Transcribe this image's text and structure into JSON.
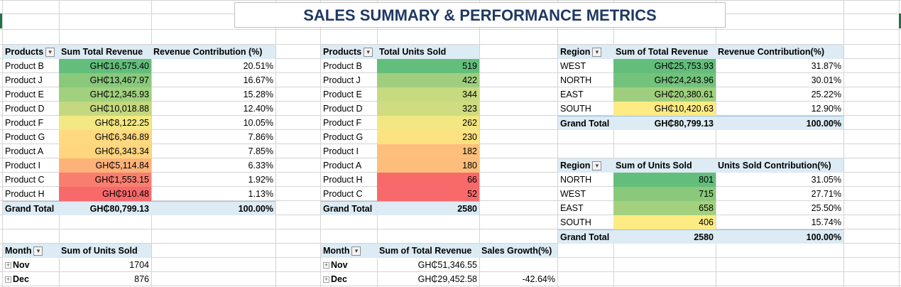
{
  "title": "SALES SUMMARY & PERFORMANCE METRICS",
  "colors": {
    "header_fill": "#dcebf4",
    "title_text": "#1f3864",
    "heat_green": "#63be7b",
    "heat_yellow": "#ffeb84",
    "heat_red": "#f8696b"
  },
  "products_revenue": {
    "headers": [
      "Products",
      "Sum  Total Revenue",
      "Revenue Contribution (%)"
    ],
    "rows": [
      [
        "Product B",
        "GH₵16,575.40",
        "20.51%"
      ],
      [
        "Product J",
        "GH₵13,467.97",
        "16.67%"
      ],
      [
        "Product E",
        "GH₵12,345.93",
        "15.28%"
      ],
      [
        "Product D",
        "GH₵10,018.88",
        "12.40%"
      ],
      [
        "Product F",
        "GH₵8,122.25",
        "10.05%"
      ],
      [
        "Product G",
        "GH₵6,346.89",
        "7.86%"
      ],
      [
        "Product A",
        "GH₵6,343.34",
        "7.85%"
      ],
      [
        "Product I",
        "GH₵5,114.84",
        "6.33%"
      ],
      [
        "Product C",
        "GH₵1,553.15",
        "1.92%"
      ],
      [
        "Product H",
        "GH₵910.48",
        "1.13%"
      ]
    ],
    "total": [
      "Grand Total",
      "GH₵80,799.13",
      "100.00%"
    ],
    "heat_colors": [
      "#63be7b",
      "#8ac97c",
      "#a1d07e",
      "#c4d97f",
      "#f3e883",
      "#ffd97f",
      "#ffd67e",
      "#fdb27a",
      "#f87f6f",
      "#f8696b"
    ]
  },
  "products_units": {
    "headers": [
      "Products",
      "Total Units Sold"
    ],
    "rows": [
      [
        "Product B",
        "519"
      ],
      [
        "Product J",
        "422"
      ],
      [
        "Product E",
        "344"
      ],
      [
        "Product D",
        "323"
      ],
      [
        "Product F",
        "262"
      ],
      [
        "Product G",
        "230"
      ],
      [
        "Product I",
        "182"
      ],
      [
        "Product A",
        "180"
      ],
      [
        "Product H",
        "66"
      ],
      [
        "Product C",
        "52"
      ]
    ],
    "total": [
      "Grand Total",
      "2580"
    ],
    "heat_colors": [
      "#63be7b",
      "#9fcf7e",
      "#c7da80",
      "#d0dc80",
      "#f2e783",
      "#fde281",
      "#fdbf7b",
      "#fdbe7b",
      "#f8696b",
      "#f8696b"
    ]
  },
  "region_revenue": {
    "headers": [
      "Region",
      "Sum of Total Revenue",
      "Revenue Contribution(%)"
    ],
    "rows": [
      [
        "WEST",
        "GH₵25,753.93",
        "31.87%"
      ],
      [
        "NORTH",
        "GH₵24,243.96",
        "30.01%"
      ],
      [
        "EAST",
        "GH₵20,380.61",
        "25.22%"
      ],
      [
        "SOUTH",
        "GH₵10,420.63",
        "12.90%"
      ]
    ],
    "total": [
      "Grand Total",
      "GH₵80,799.13",
      "100.00%"
    ],
    "heat_colors": [
      "#63be7b",
      "#74c37c",
      "#9fcf7e",
      "#ffeb84"
    ]
  },
  "region_units": {
    "headers": [
      "Region",
      "Sum of Units Sold",
      "Units Sold Contribution(%)"
    ],
    "rows": [
      [
        "NORTH",
        "801",
        "31.05%"
      ],
      [
        "WEST",
        "715",
        "27.71%"
      ],
      [
        "EAST",
        "658",
        "25.50%"
      ],
      [
        "SOUTH",
        "406",
        "15.74%"
      ]
    ],
    "total": [
      "Grand Total",
      "2580",
      "100.00%"
    ],
    "heat_colors": [
      "#63be7b",
      "#8ac97c",
      "#a4d17e",
      "#ffeb84"
    ]
  },
  "month_units": {
    "headers": [
      "Month",
      "Sum of Units Sold"
    ],
    "rows": [
      [
        "Nov",
        "1704"
      ],
      [
        "Dec",
        "876"
      ]
    ]
  },
  "month_revenue": {
    "headers": [
      "Month",
      "Sum of Total Revenue",
      "Sales Growth(%)"
    ],
    "rows": [
      [
        "Nov",
        "GH₵51,346.55",
        ""
      ],
      [
        "Dec",
        "GH₵29,452.58",
        "-42.64%"
      ]
    ]
  }
}
